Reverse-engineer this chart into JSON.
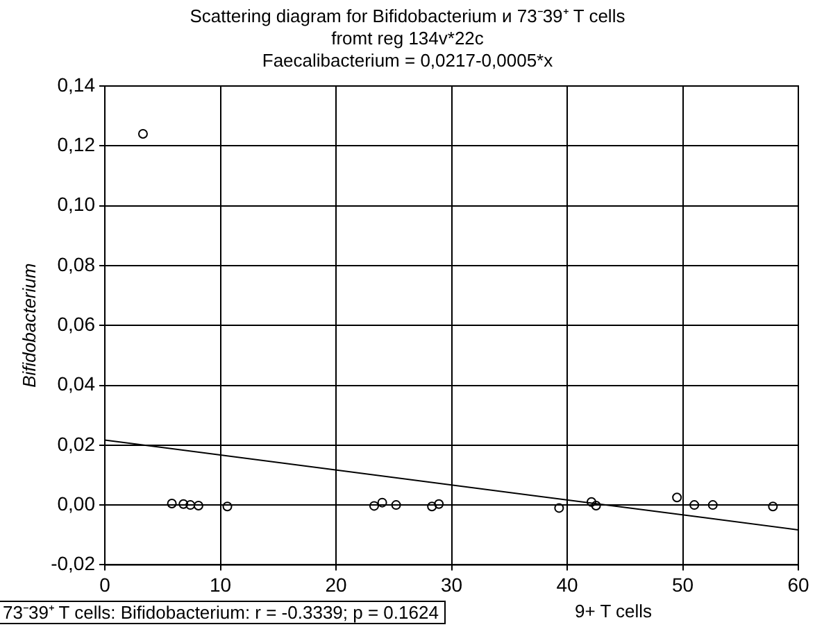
{
  "chart_data": {
    "type": "scatter",
    "title": "Scattering diagram for Bifidobacterium и 73⁻39⁺ T cells",
    "subtitle": "fromt reg 134v*22c",
    "annotations": [
      "Faecalibacterium = 0,0217-0,0005*x",
      "73⁻39⁺ T cells: Bifidobacterium: r = -0.3339; p = 0.1624"
    ],
    "xlabel": "9+ T cells",
    "ylabel": "Bifidobacterium",
    "series": [
      {
        "color": "#000000",
        "x": [
          3.3,
          5.8,
          6.8,
          7.4,
          8.1,
          10.6,
          23.3,
          24.0,
          25.2,
          28.3,
          28.9,
          39.3,
          42.1,
          42.5,
          49.5,
          51.0,
          52.6,
          57.8
        ],
        "values": [
          0.124,
          0.0005,
          0.0003,
          0.0,
          -0.0002,
          -0.0005,
          -0.0003,
          0.0008,
          0.0,
          -0.0005,
          0.0003,
          -0.001,
          0.001,
          -0.0002,
          0.0025,
          0.0,
          0.0,
          -0.0005
        ]
      },
      {
        "type": "line",
        "color": "#000000",
        "marker": "none",
        "x": [
          0,
          60
        ],
        "values": [
          0.0217,
          -0.0083
        ]
      }
    ],
    "marker": "circle",
    "xlim": [
      0,
      60
    ],
    "xticks": [
      0,
      10,
      20,
      30,
      40,
      50,
      60
    ],
    "ylim": [
      -0.02,
      0.14
    ],
    "yticks": [
      {
        "value": -0.02,
        "label": "-0,02"
      },
      {
        "value": 0,
        "label": "0,00"
      },
      {
        "value": 0.02,
        "label": "0,02"
      },
      {
        "value": 0.04,
        "label": "0,04"
      },
      {
        "value": 0.06,
        "label": "0,06"
      },
      {
        "value": 0.08,
        "label": "0,08"
      },
      {
        "value": 0.1,
        "label": "0,10"
      },
      {
        "value": 0.12,
        "label": "0,12"
      },
      {
        "value": 0.14,
        "label": "0,14"
      }
    ],
    "grid": true,
    "legend": false
  }
}
